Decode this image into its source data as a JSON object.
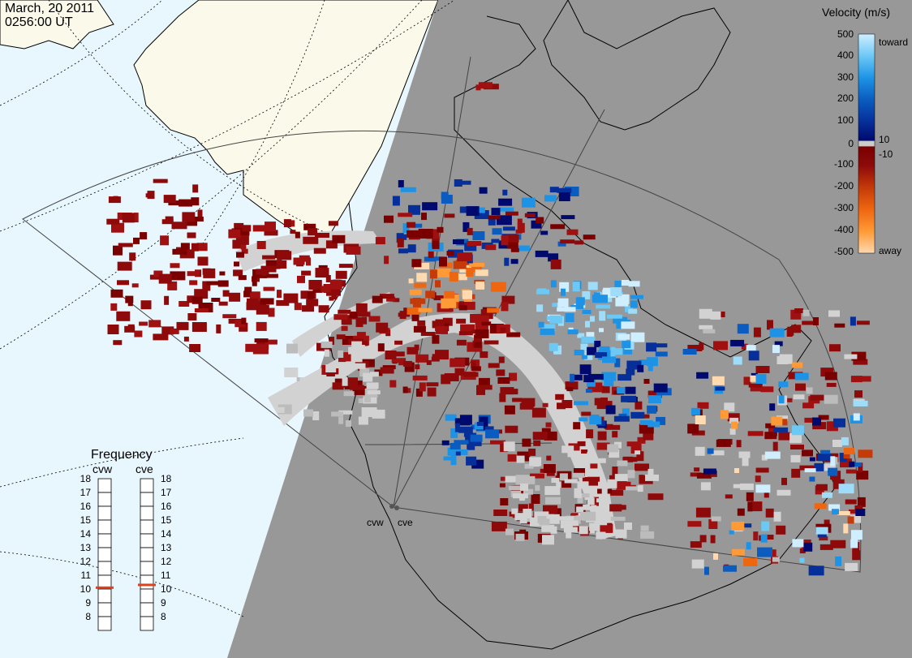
{
  "header": {
    "date": "March, 20 2011",
    "time": "0256:00 UT"
  },
  "colors": {
    "sea_day": "#e8f6fd",
    "land_day": "#fbf9ea",
    "night": "#989898",
    "ground_scatter": "#d2d2d2",
    "coast": "#000000"
  },
  "velocity_scale": {
    "title": "Velocity (m/s)",
    "ticks": [
      "500",
      "400",
      "300",
      "200",
      "100",
      "10",
      "0",
      "-10",
      "-100",
      "-200",
      "-300",
      "-400",
      "-500"
    ],
    "toward_label": "toward",
    "away_label": "away",
    "gradient": [
      {
        "value": 500,
        "color": "#cfeeff"
      },
      {
        "value": 400,
        "color": "#6cc8f5"
      },
      {
        "value": 300,
        "color": "#1e93e6"
      },
      {
        "value": 200,
        "color": "#0a5cc0"
      },
      {
        "value": 100,
        "color": "#062f9a"
      },
      {
        "value": 10,
        "color": "#000a6e"
      },
      {
        "value": -10,
        "color": "#7a0000"
      },
      {
        "value": -100,
        "color": "#8e0a0a"
      },
      {
        "value": -200,
        "color": "#c43a08"
      },
      {
        "value": -300,
        "color": "#ee6610"
      },
      {
        "value": -400,
        "color": "#ff9a36"
      },
      {
        "value": -500,
        "color": "#ffd9b0"
      }
    ]
  },
  "frequency": {
    "title": "Frequency",
    "radars": [
      {
        "name": "cvw",
        "value": 10.6
      },
      {
        "name": "cve",
        "value": 10.8
      }
    ],
    "ticks": [
      "18",
      "17",
      "16",
      "15",
      "14",
      "13",
      "12",
      "11",
      "10",
      "9",
      "8"
    ],
    "marker_color": "#e0411b"
  },
  "radars": [
    {
      "code": "cvw"
    },
    {
      "code": "cve"
    }
  ]
}
